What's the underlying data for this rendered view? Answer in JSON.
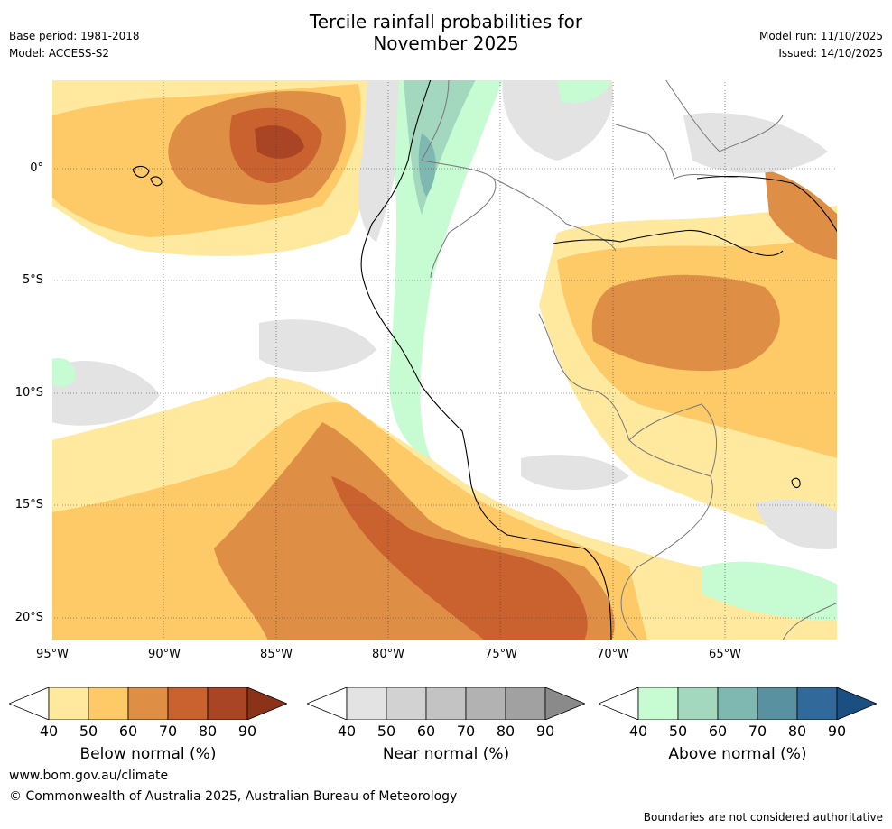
{
  "header": {
    "title_line1": "Tercile rainfall probabilities for",
    "title_line2": "November 2025",
    "base_period": "Base period: 1981-2018",
    "model": "Model: ACCESS-S2",
    "model_run": "Model run: 11/10/2025",
    "issued": "Issued: 14/10/2025"
  },
  "map": {
    "lat_labels": [
      "0°",
      "5°S",
      "10°S",
      "15°S",
      "20°S"
    ],
    "lon_labels": [
      "95°W",
      "90°W",
      "85°W",
      "80°W",
      "75°W",
      "70°W",
      "65°W"
    ]
  },
  "colorbars": [
    {
      "label": "Below normal (%)",
      "ticks": [
        "40",
        "50",
        "60",
        "70",
        "80",
        "90"
      ],
      "colors": [
        "#ffffff",
        "#fee99f",
        "#fdca67",
        "#de8f45",
        "#c9622f",
        "#a94524",
        "#8c3218"
      ]
    },
    {
      "label": "Near normal (%)",
      "ticks": [
        "40",
        "50",
        "60",
        "70",
        "80",
        "90"
      ],
      "colors": [
        "#ffffff",
        "#e3e3e3",
        "#d2d2d2",
        "#c3c3c3",
        "#b2b2b2",
        "#a1a1a1",
        "#8a8a8a"
      ]
    },
    {
      "label": "Above normal (%)",
      "ticks": [
        "40",
        "50",
        "60",
        "70",
        "80",
        "90"
      ],
      "colors": [
        "#ffffff",
        "#c7fbd2",
        "#a3d8be",
        "#7fb8b0",
        "#5a91a0",
        "#316a9a",
        "#1b4f82"
      ]
    }
  ],
  "footer": {
    "website": "www.bom.gov.au/climate",
    "copyright": "© Commonwealth of Australia 2025, Australian Bureau of Meteorology",
    "disclaimer": "Boundaries are not considered authoritative"
  }
}
